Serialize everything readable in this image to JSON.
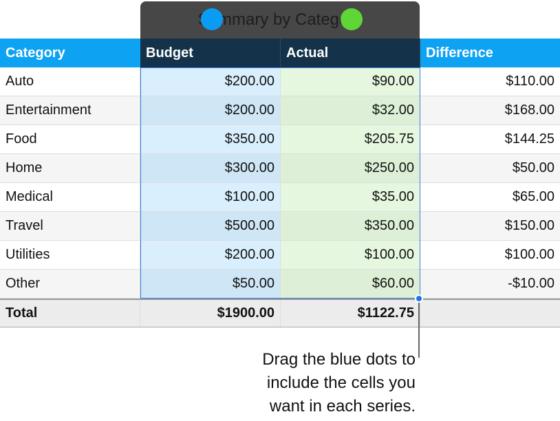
{
  "chart_title": "Summary by Category",
  "columns": [
    "Category",
    "Budget",
    "Actual",
    "Difference"
  ],
  "rows": [
    [
      "Auto",
      "$200.00",
      "$90.00",
      "$110.00"
    ],
    [
      "Entertainment",
      "$200.00",
      "$32.00",
      "$168.00"
    ],
    [
      "Food",
      "$350.00",
      "$205.75",
      "$144.25"
    ],
    [
      "Home",
      "$300.00",
      "$250.00",
      "$50.00"
    ],
    [
      "Medical",
      "$100.00",
      "$35.00",
      "$65.00"
    ],
    [
      "Travel",
      "$500.00",
      "$350.00",
      "$150.00"
    ],
    [
      "Utilities",
      "$200.00",
      "$100.00",
      "$100.00"
    ],
    [
      "Other",
      "$50.00",
      "$60.00",
      "-$10.00"
    ]
  ],
  "total": [
    "Total",
    "$1900.00",
    "$1122.75",
    ""
  ],
  "series_colors": {
    "budget": "#0a9cf5",
    "actual": "#5ed636"
  },
  "caption": [
    "Drag the blue dots to",
    "include the cells you",
    "want in each series."
  ]
}
